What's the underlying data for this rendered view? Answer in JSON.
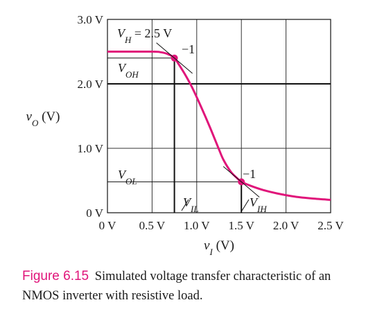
{
  "chart_data": {
    "type": "line",
    "xlabel": "v_I (V)",
    "ylabel": "v_O (V)",
    "xlim": [
      0,
      2.5
    ],
    "ylim": [
      0,
      3.0
    ],
    "x_ticks": [
      "0 V",
      "0.5 V",
      "1.0 V",
      "1.5 V",
      "2.0 V",
      "2.5 V"
    ],
    "y_ticks": [
      "0 V",
      "1.0 V",
      "2.0 V",
      "3.0 V"
    ],
    "grid": true,
    "series": [
      {
        "color": "#e0157a",
        "points": [
          [
            0.0,
            2.5
          ],
          [
            0.5,
            2.5
          ],
          [
            0.6,
            2.49
          ],
          [
            0.68,
            2.46
          ],
          [
            0.75,
            2.4
          ],
          [
            0.8,
            2.3
          ],
          [
            0.88,
            2.12
          ],
          [
            0.95,
            1.94
          ],
          [
            1.05,
            1.64
          ],
          [
            1.15,
            1.32
          ],
          [
            1.25,
            0.98
          ],
          [
            1.3,
            0.82
          ],
          [
            1.38,
            0.64
          ],
          [
            1.45,
            0.54
          ],
          [
            1.5,
            0.48
          ],
          [
            1.6,
            0.42
          ],
          [
            1.75,
            0.35
          ],
          [
            1.9,
            0.3
          ],
          [
            2.1,
            0.25
          ],
          [
            2.3,
            0.22
          ],
          [
            2.5,
            0.2
          ]
        ]
      }
    ],
    "markers": [
      [
        0.75,
        2.4
      ],
      [
        1.5,
        0.48
      ]
    ],
    "annotations": {
      "vh": "V_H = 2.5 V",
      "voh": "V_OH",
      "vol": "V_OL",
      "vil": "V_IL",
      "vih": "V_IH",
      "slope_top": "−1",
      "slope_bottom": "−1"
    }
  },
  "caption": {
    "number": "Figure 6.15",
    "text": "Simulated voltage transfer characteristic of an NMOS inverter with resistive load."
  },
  "colors": {
    "accent": "#e0157a"
  }
}
